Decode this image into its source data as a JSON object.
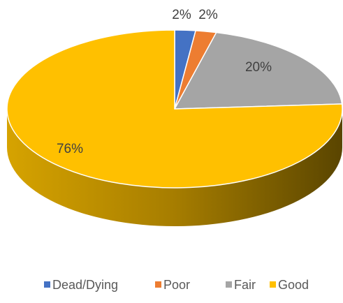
{
  "chart_data": {
    "type": "pie",
    "categories": [
      "Dead/Dying",
      "Poor",
      "Fair",
      "Good"
    ],
    "values": [
      2,
      2,
      20,
      76
    ],
    "value_labels": [
      "2%",
      "2%",
      "20%",
      "76%"
    ],
    "colors": [
      "#4472c4",
      "#ed7d31",
      "#a5a5a5",
      "#ffc000"
    ],
    "legend": "bottom"
  }
}
